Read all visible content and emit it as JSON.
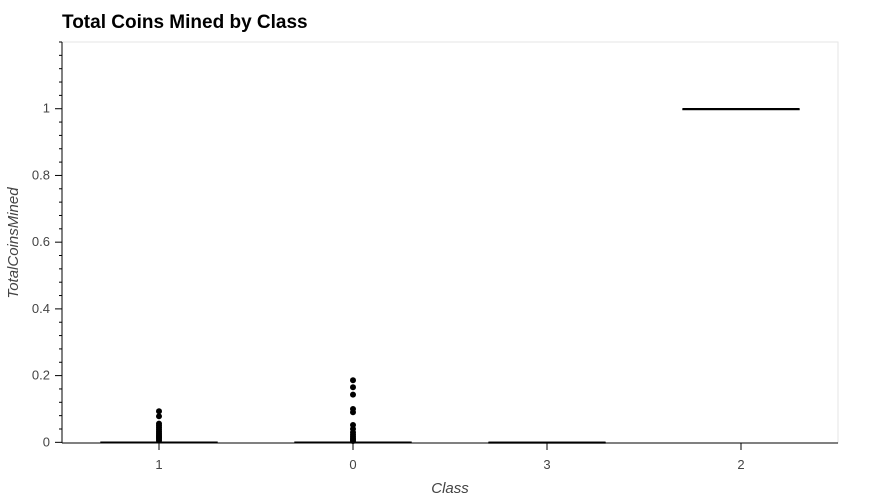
{
  "chart_data": {
    "type": "box",
    "title": "Total Coins Mined by Class",
    "xlabel": "Class",
    "ylabel": "TotalCoinsMined",
    "categories": [
      "1",
      "0",
      "3",
      "2"
    ],
    "ylim": [
      -0.002,
      1.2
    ],
    "yticks": [
      0,
      0.2,
      0.4,
      0.6,
      0.8,
      1
    ],
    "ytick_labels": [
      "0",
      "0.2",
      "0.4",
      "0.6",
      "0.8",
      "1"
    ],
    "grid": false,
    "boxes": [
      {
        "category": "1",
        "q1": 0,
        "median": 0,
        "q3": 0.001,
        "whisker_low": 0,
        "whisker_high": 0.002,
        "outliers": [
          0.005,
          0.01,
          0.014,
          0.018,
          0.022,
          0.027,
          0.032,
          0.038,
          0.044,
          0.05,
          0.056,
          0.078,
          0.093
        ]
      },
      {
        "category": "0",
        "q1": 0,
        "median": 0,
        "q3": 0.001,
        "whisker_low": 0,
        "whisker_high": 0.002,
        "outliers": [
          0.004,
          0.008,
          0.012,
          0.017,
          0.023,
          0.03,
          0.04,
          0.052,
          0.09,
          0.1,
          0.143,
          0.165,
          0.186
        ]
      },
      {
        "category": "3",
        "q1": 0,
        "median": 0,
        "q3": 0.0005,
        "whisker_low": 0,
        "whisker_high": 0.001,
        "outliers": []
      },
      {
        "category": "2",
        "q1": 1,
        "median": 1,
        "q3": 1,
        "whisker_low": 1,
        "whisker_high": 1,
        "outliers": []
      }
    ]
  }
}
